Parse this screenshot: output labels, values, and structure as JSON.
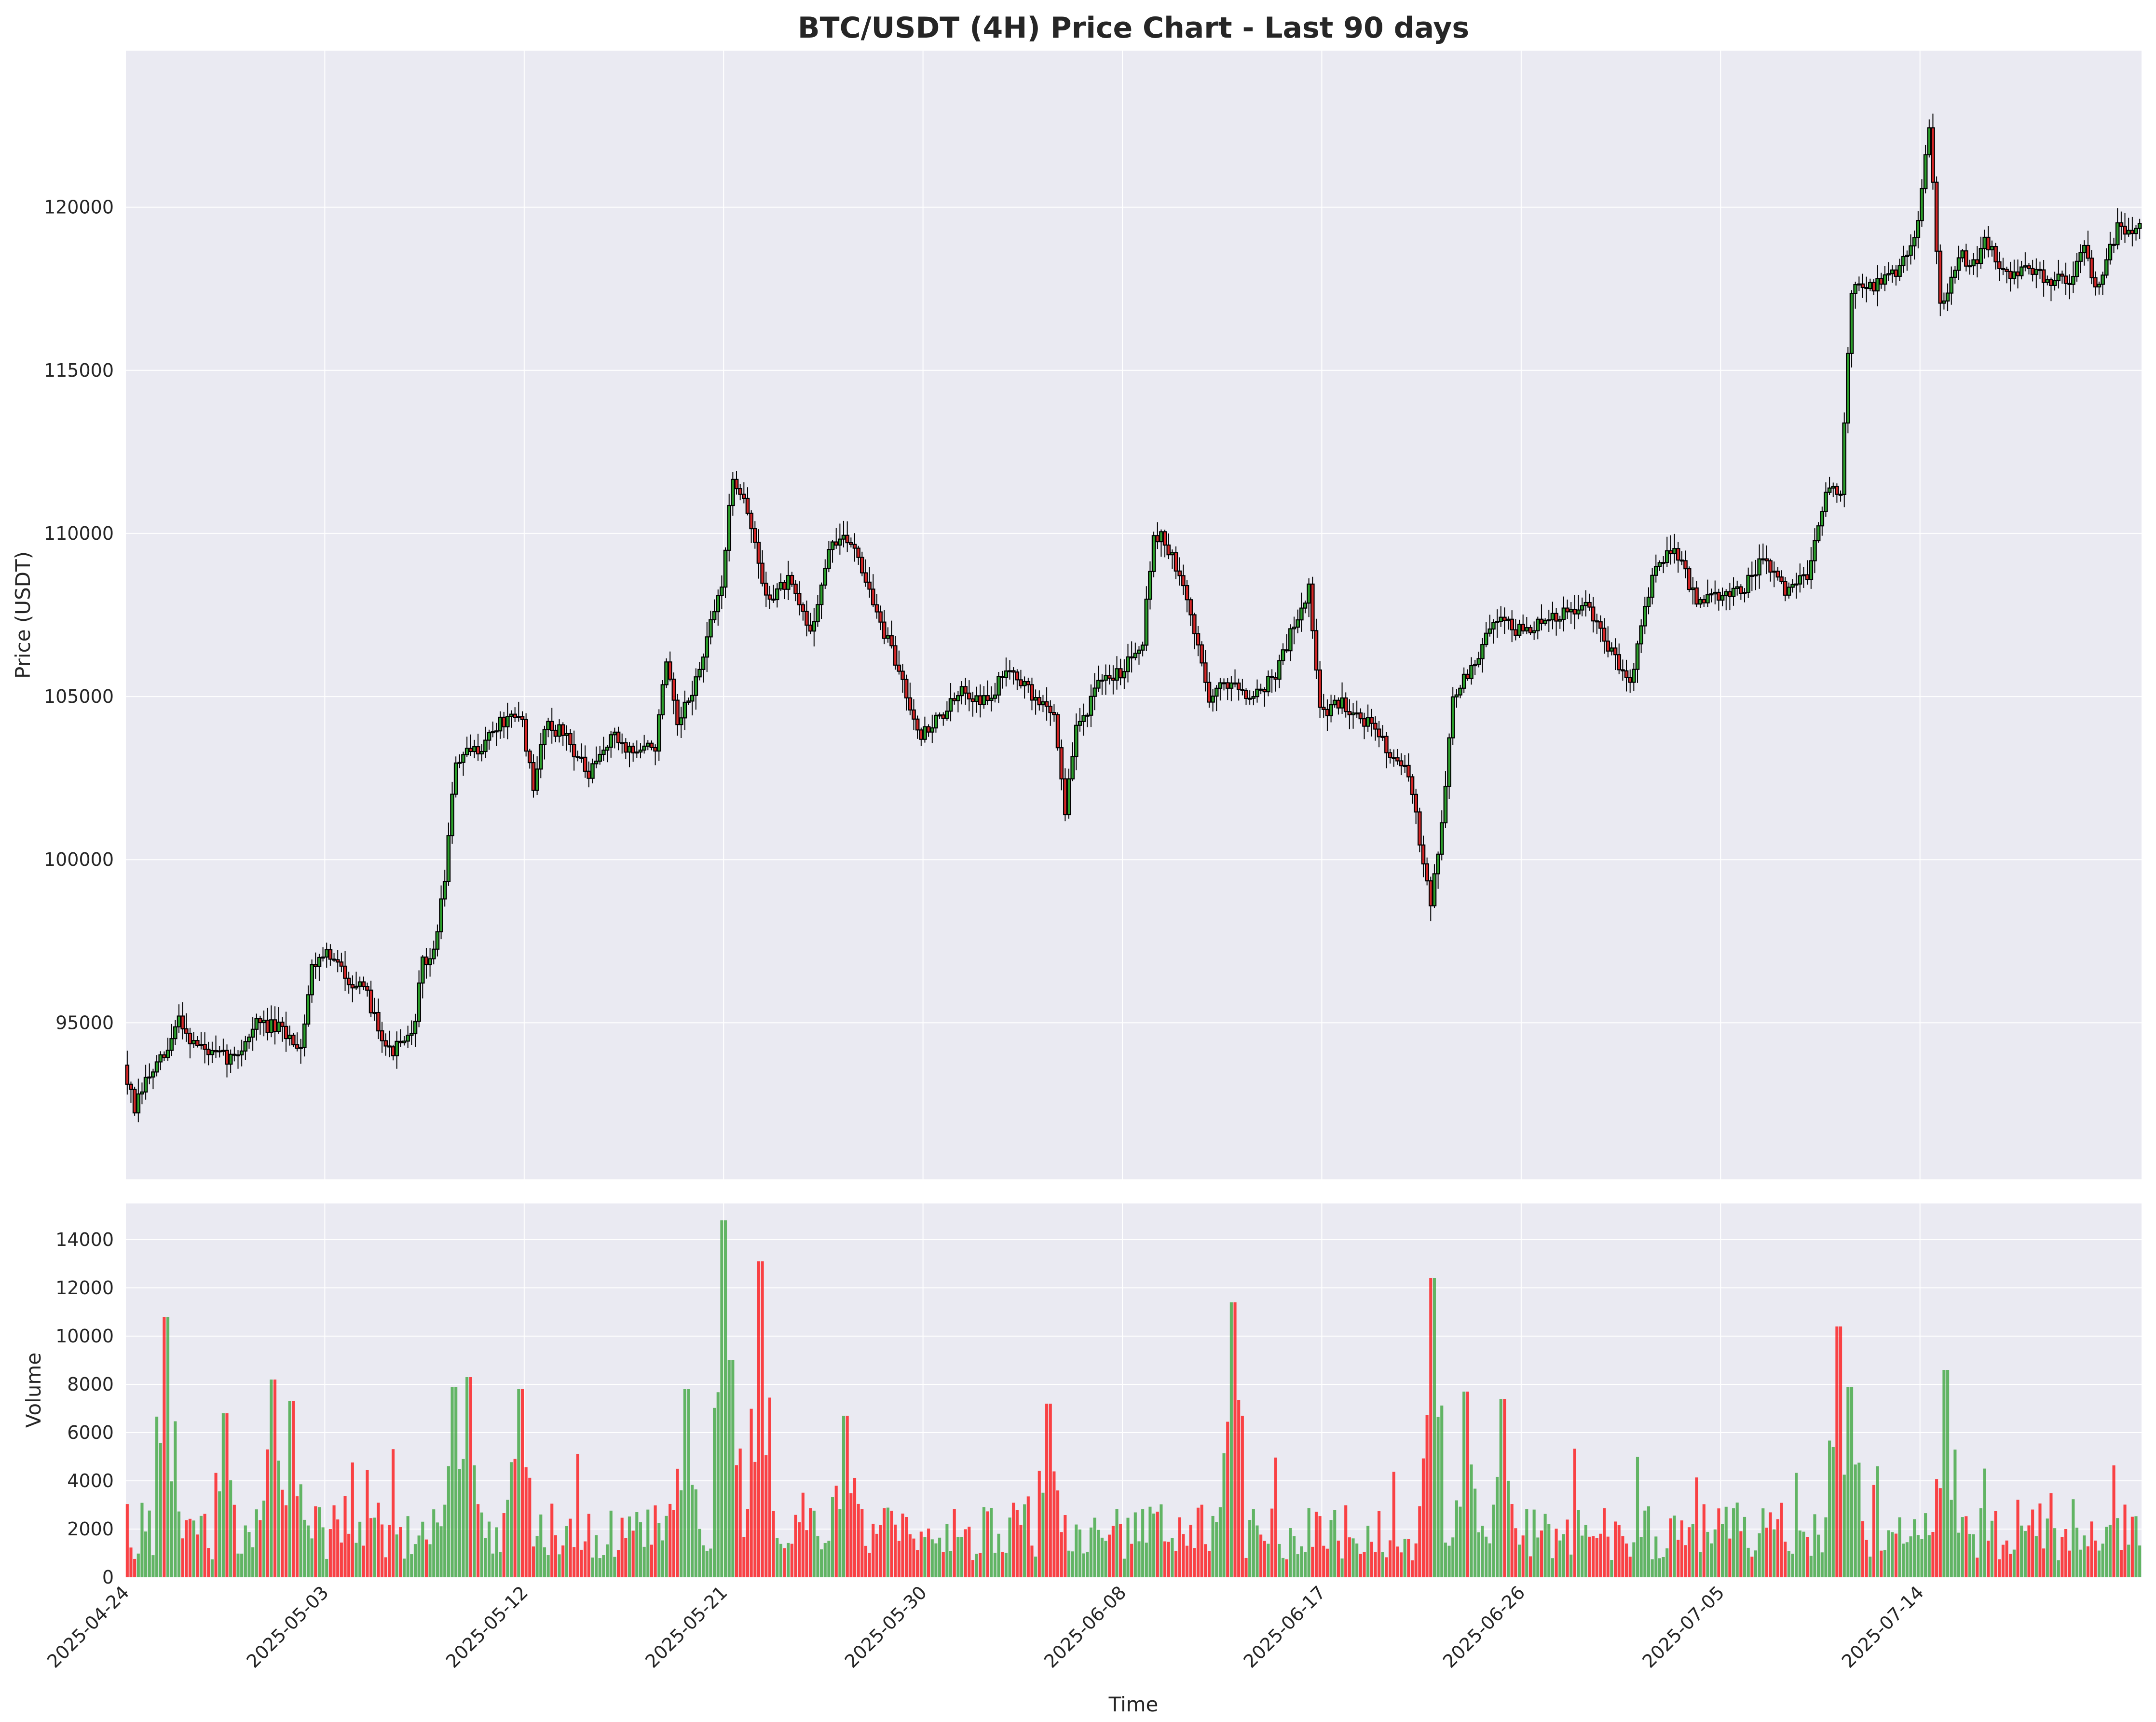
{
  "chart_data": [
    {
      "panel": "price",
      "type": "candlestick",
      "title": "BTC/USDT (4H) Price Chart - Last 90 days",
      "ylabel": "Price (USDT)",
      "ylim": [
        90200,
        124800
      ],
      "yticks": [
        95000,
        100000,
        105000,
        110000,
        115000,
        120000
      ],
      "grid": true,
      "colors": {
        "up": "#2ca02c",
        "down": "#d62728",
        "wick": "#000000",
        "body_edge": "#000000",
        "plot_bg": "#eaeaf2",
        "grid": "#ffffff"
      },
      "candles_per_day": 6,
      "close_path": [
        [
          "2025-04-24",
          93700
        ],
        [
          "2025-04-24T12:00",
          92300
        ],
        [
          "2025-04-25",
          93200
        ],
        [
          "2025-04-26",
          94100
        ],
        [
          "2025-04-26T12:00",
          95200
        ],
        [
          "2025-04-27",
          94500
        ],
        [
          "2025-04-28",
          94000
        ],
        [
          "2025-04-29",
          93900
        ],
        [
          "2025-04-30",
          95000
        ],
        [
          "2025-05-01",
          94800
        ],
        [
          "2025-05-02",
          94300
        ],
        [
          "2025-05-02T12:00",
          96700
        ],
        [
          "2025-05-03",
          97200
        ],
        [
          "2025-05-04",
          96500
        ],
        [
          "2025-05-05",
          95800
        ],
        [
          "2025-05-06",
          94100
        ],
        [
          "2025-05-07",
          94500
        ],
        [
          "2025-05-07T12:00",
          96800
        ],
        [
          "2025-05-08",
          97100
        ],
        [
          "2025-05-08T12:00",
          99500
        ],
        [
          "2025-05-09",
          103000
        ],
        [
          "2025-05-10",
          103400
        ],
        [
          "2025-05-11",
          104200
        ],
        [
          "2025-05-12",
          104300
        ],
        [
          "2025-05-12T12:00",
          102000
        ],
        [
          "2025-05-13",
          104200
        ],
        [
          "2025-05-14",
          103800
        ],
        [
          "2025-05-15",
          102500
        ],
        [
          "2025-05-16",
          103800
        ],
        [
          "2025-05-17",
          103300
        ],
        [
          "2025-05-18",
          103500
        ],
        [
          "2025-05-18T12:00",
          106000
        ],
        [
          "2025-05-19",
          104000
        ],
        [
          "2025-05-20",
          105800
        ],
        [
          "2025-05-21",
          108500
        ],
        [
          "2025-05-21T12:00",
          111700
        ],
        [
          "2025-05-22",
          111200
        ],
        [
          "2025-05-23",
          108000
        ],
        [
          "2025-05-24",
          108500
        ],
        [
          "2025-05-25",
          107000
        ],
        [
          "2025-05-26",
          109800
        ],
        [
          "2025-05-27",
          109700
        ],
        [
          "2025-05-28",
          107500
        ],
        [
          "2025-05-29",
          105800
        ],
        [
          "2025-05-30",
          103800
        ],
        [
          "2025-05-31",
          104500
        ],
        [
          "2025-06-01",
          105200
        ],
        [
          "2025-06-02",
          104800
        ],
        [
          "2025-06-03",
          106000
        ],
        [
          "2025-06-04",
          105000
        ],
        [
          "2025-06-05",
          104500
        ],
        [
          "2025-06-05T12:00",
          101500
        ],
        [
          "2025-06-06",
          104000
        ],
        [
          "2025-06-07",
          105300
        ],
        [
          "2025-06-08",
          105800
        ],
        [
          "2025-06-09",
          106800
        ],
        [
          "2025-06-09T12:00",
          110000
        ],
        [
          "2025-06-10",
          109800
        ],
        [
          "2025-06-11",
          108000
        ],
        [
          "2025-06-12",
          105000
        ],
        [
          "2025-06-13",
          105500
        ],
        [
          "2025-06-14",
          105000
        ],
        [
          "2025-06-15",
          105700
        ],
        [
          "2025-06-16",
          107500
        ],
        [
          "2025-06-16T12:00",
          108300
        ],
        [
          "2025-06-17",
          104500
        ],
        [
          "2025-06-18",
          104800
        ],
        [
          "2025-06-19",
          104300
        ],
        [
          "2025-06-20",
          103500
        ],
        [
          "2025-06-21",
          102500
        ],
        [
          "2025-06-22",
          98800
        ],
        [
          "2025-06-22T12:00",
          101000
        ],
        [
          "2025-06-23",
          105000
        ],
        [
          "2025-06-24",
          106000
        ],
        [
          "2025-06-25",
          107500
        ],
        [
          "2025-06-26",
          107000
        ],
        [
          "2025-06-27",
          107200
        ],
        [
          "2025-06-28",
          107500
        ],
        [
          "2025-06-29",
          107800
        ],
        [
          "2025-06-30",
          106500
        ],
        [
          "2025-07-01",
          105500
        ],
        [
          "2025-07-02",
          108800
        ],
        [
          "2025-07-03",
          109700
        ],
        [
          "2025-07-04",
          107800
        ],
        [
          "2025-07-05",
          108100
        ],
        [
          "2025-07-06",
          108200
        ],
        [
          "2025-07-07",
          109200
        ],
        [
          "2025-07-08",
          108200
        ],
        [
          "2025-07-09",
          108800
        ],
        [
          "2025-07-10",
          111500
        ],
        [
          "2025-07-10T12:00",
          111200
        ],
        [
          "2025-07-11",
          117500
        ],
        [
          "2025-07-12",
          117600
        ],
        [
          "2025-07-13",
          118000
        ],
        [
          "2025-07-14",
          119500
        ],
        [
          "2025-07-14T12:00",
          122500
        ],
        [
          "2025-07-15",
          117000
        ],
        [
          "2025-07-16",
          118500
        ],
        [
          "2025-07-16T12:00",
          118200
        ],
        [
          "2025-07-17",
          119000
        ],
        [
          "2025-07-18",
          118000
        ],
        [
          "2025-07-19",
          118000
        ],
        [
          "2025-07-20",
          117800
        ],
        [
          "2025-07-21",
          117800
        ],
        [
          "2025-07-21T12:00",
          119000
        ],
        [
          "2025-07-22",
          117500
        ],
        [
          "2025-07-23",
          119300
        ]
      ]
    },
    {
      "panel": "volume",
      "type": "bar",
      "xlabel": "Time",
      "ylabel": "Volume",
      "ylim": [
        0,
        15500
      ],
      "yticks": [
        0,
        2000,
        4000,
        6000,
        8000,
        10000,
        12000,
        14000
      ],
      "grid": true,
      "colors": {
        "up": "#2ca02c",
        "down": "#ff0000"
      },
      "xlim": [
        "2025-04-24",
        "2025-07-24"
      ],
      "xtick_dates": [
        "2025-04-24",
        "2025-05-03",
        "2025-05-12",
        "2025-05-21",
        "2025-05-30",
        "2025-06-08",
        "2025-06-17",
        "2025-06-26",
        "2025-07-05",
        "2025-07-14"
      ],
      "volume_peaks": [
        [
          "2025-04-25T20:00",
          10800
        ],
        [
          "2025-04-28T12:00",
          6800
        ],
        [
          "2025-04-30T16:00",
          8200
        ],
        [
          "2025-05-01T12:00",
          7300
        ],
        [
          "2025-05-08T20:00",
          7900
        ],
        [
          "2025-05-09T12:00",
          8300
        ],
        [
          "2025-05-11T20:00",
          7800
        ],
        [
          "2025-05-19T08:00",
          7800
        ],
        [
          "2025-05-21T00:00",
          14800
        ],
        [
          "2025-05-21T08:00",
          9000
        ],
        [
          "2025-05-22T16:00",
          13100
        ],
        [
          "2025-05-26T12:00",
          6700
        ],
        [
          "2025-06-04T16:00",
          7200
        ],
        [
          "2025-06-13T00:00",
          11400
        ],
        [
          "2025-06-22T00:00",
          12400
        ],
        [
          "2025-06-23T12:00",
          7700
        ],
        [
          "2025-06-25T04:00",
          7400
        ],
        [
          "2025-07-10T08:00",
          10400
        ],
        [
          "2025-07-10T20:00",
          7900
        ],
        [
          "2025-07-15T04:00",
          8600
        ]
      ]
    }
  ]
}
